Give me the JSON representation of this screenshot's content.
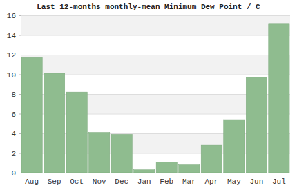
{
  "chart_data": {
    "type": "bar",
    "title": "Last 12-months monthly-mean Minimum Dew Point / C",
    "categories": [
      "Aug",
      "Sep",
      "Oct",
      "Nov",
      "Dec",
      "Jan",
      "Feb",
      "Mar",
      "Apr",
      "May",
      "Jun",
      "Jul"
    ],
    "values": [
      11.7,
      10.1,
      8.2,
      4.1,
      3.9,
      0.3,
      1.1,
      0.8,
      2.8,
      5.4,
      9.7,
      15.1
    ],
    "color": "#8fbc8f",
    "ylim": [
      0,
      16
    ],
    "yticks": [
      0,
      2,
      4,
      6,
      8,
      10,
      12,
      14,
      16
    ],
    "grid": true
  }
}
